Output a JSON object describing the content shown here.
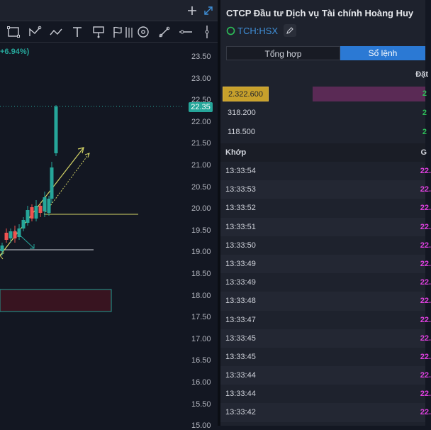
{
  "chart": {
    "change_label": "+6.94%)",
    "last_price": "22.35",
    "topbar": {
      "add_icon": "plus-icon",
      "expand_icon": "expand-icon"
    },
    "tools": [
      "rectangle-icon",
      "path-icon",
      "trend-icon",
      "text-icon",
      "callout-icon",
      "flag-icon",
      "pitchfork-icon",
      "target-icon",
      "brush-icon",
      "horizontal-line-icon",
      "vertical-line-icon"
    ],
    "price_axis": [
      "23.50",
      "23.00",
      "22.50",
      "22.00",
      "21.50",
      "21.00",
      "20.50",
      "20.00",
      "19.50",
      "19.00",
      "18.50",
      "18.00",
      "17.50",
      "17.00",
      "16.50",
      "16.00",
      "15.50",
      "15.00"
    ],
    "colors": {
      "up": "#26a69a",
      "down": "#ef5350",
      "annotation": "#d4d466",
      "arrow_up": "#d4d466",
      "zone": "#4a1c2a"
    }
  },
  "panel": {
    "company_name": "CTCP Đầu tư Dịch vụ Tài chính Hoàng Huy",
    "ticker": "TCH:HSX",
    "ticker_icon": "status-circle-icon",
    "edit_icon": "pencil-icon",
    "tabs": [
      "Tổng hợp",
      "Sổ lệnh"
    ],
    "order_book": {
      "header": "Đặt",
      "rows": [
        {
          "volume": "2.322.600",
          "price": "2",
          "bar_fraction": 1.0,
          "highlight": true
        },
        {
          "volume": "318.200",
          "price": "2",
          "bar_fraction": 0,
          "highlight": false
        },
        {
          "volume": "118.500",
          "price": "2",
          "bar_fraction": 0,
          "highlight": false
        }
      ]
    },
    "trades": {
      "header_left": "Khớp",
      "header_right": "G",
      "rows": [
        {
          "time": "13:33:54",
          "price": "22."
        },
        {
          "time": "13:33:53",
          "price": "22."
        },
        {
          "time": "13:33:52",
          "price": "22."
        },
        {
          "time": "13:33:51",
          "price": "22."
        },
        {
          "time": "13:33:50",
          "price": "22."
        },
        {
          "time": "13:33:49",
          "price": "22."
        },
        {
          "time": "13:33:49",
          "price": "22."
        },
        {
          "time": "13:33:48",
          "price": "22."
        },
        {
          "time": "13:33:47",
          "price": "22."
        },
        {
          "time": "13:33:45",
          "price": "22."
        },
        {
          "time": "13:33:45",
          "price": "22."
        },
        {
          "time": "13:33:44",
          "price": "22."
        },
        {
          "time": "13:33:44",
          "price": "22."
        },
        {
          "time": "13:33:42",
          "price": "22."
        }
      ]
    }
  }
}
